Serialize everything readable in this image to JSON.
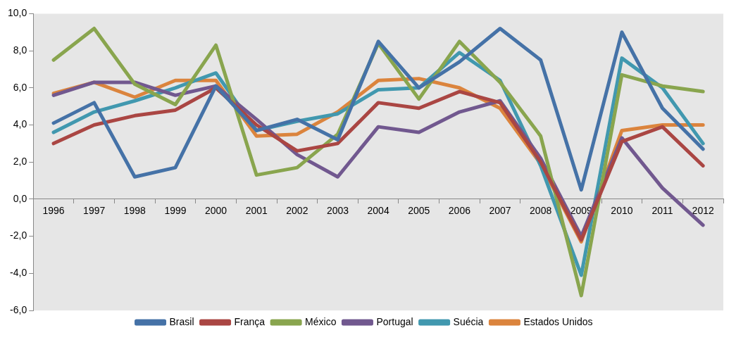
{
  "chart_data": {
    "type": "line",
    "categories": [
      "1996",
      "1997",
      "1998",
      "1999",
      "2000",
      "2001",
      "2002",
      "2003",
      "2004",
      "2005",
      "2006",
      "2007",
      "2008",
      "2009",
      "2010",
      "2011",
      "2012"
    ],
    "series": [
      {
        "name": "Brasil",
        "color": "#4572a7",
        "values": [
          4.1,
          5.2,
          1.2,
          1.7,
          6.1,
          3.7,
          4.3,
          3.2,
          8.5,
          6.0,
          7.4,
          9.2,
          7.5,
          0.5,
          9.0,
          4.9,
          2.7
        ]
      },
      {
        "name": "França",
        "color": "#aa4643",
        "values": [
          3.0,
          4.0,
          4.5,
          4.8,
          6.0,
          4.0,
          2.6,
          3.0,
          5.2,
          4.9,
          5.8,
          5.2,
          2.0,
          -2.2,
          3.1,
          3.9,
          1.8
        ]
      },
      {
        "name": "México",
        "color": "#89a54e",
        "values": [
          7.5,
          9.2,
          6.2,
          5.1,
          8.3,
          1.3,
          1.7,
          3.5,
          8.4,
          5.4,
          8.5,
          6.3,
          3.4,
          -5.2,
          6.7,
          6.1,
          5.8
        ]
      },
      {
        "name": "Portugal",
        "color": "#71588f",
        "values": [
          5.6,
          6.3,
          6.3,
          5.6,
          6.1,
          4.3,
          2.4,
          1.2,
          3.9,
          3.6,
          4.7,
          5.3,
          2.2,
          -2.0,
          3.3,
          0.6,
          -1.4
        ]
      },
      {
        "name": "Suécia",
        "color": "#4198af",
        "values": [
          3.6,
          4.7,
          5.3,
          6.0,
          6.8,
          3.7,
          4.2,
          4.6,
          5.9,
          6.0,
          7.9,
          6.4,
          1.8,
          -4.1,
          7.6,
          6.0,
          3.0
        ]
      },
      {
        "name": "Estados Unidos",
        "color": "#db843d",
        "values": [
          5.7,
          6.3,
          5.5,
          6.4,
          6.4,
          3.4,
          3.5,
          4.7,
          6.4,
          6.5,
          6.0,
          4.9,
          1.9,
          -2.3,
          3.7,
          4.0,
          4.0
        ]
      }
    ],
    "ylim": [
      -6,
      10
    ],
    "yticks": [
      {
        "value": -6,
        "label": "-6,0"
      },
      {
        "value": -4,
        "label": "-4,0"
      },
      {
        "value": -2,
        "label": "-2,0"
      },
      {
        "value": 0,
        "label": "0,0"
      },
      {
        "value": 2,
        "label": "2,0"
      },
      {
        "value": 4,
        "label": "4,0"
      },
      {
        "value": 6,
        "label": "6,0"
      },
      {
        "value": 8,
        "label": "8,0"
      },
      {
        "value": 10,
        "label": "10,0"
      }
    ],
    "grid": false,
    "legend": "bottom",
    "marker": "none",
    "line_style": "solid"
  }
}
